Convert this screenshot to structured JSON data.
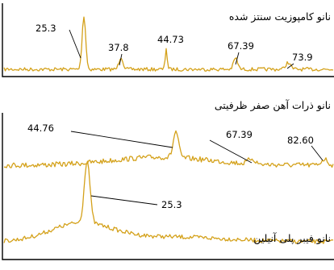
{
  "chart_data": {
    "type": "line",
    "title": "",
    "xlabel": "",
    "ylabel": "",
    "color": "#d4a11a",
    "frame_color": "#000000",
    "panels": [
      {
        "name": "نانو کامپوزیت سنتز شده",
        "peaks": [
          {
            "label": "25.3",
            "height": 0.95
          },
          {
            "label": "37.8",
            "height": 0.22
          },
          {
            "label": "44.73",
            "height": 0.38
          },
          {
            "label": "67.39",
            "height": 0.2
          },
          {
            "label": "73.9",
            "height": 0.12
          }
        ]
      },
      {
        "name": "نانو ذرات آهن صفر ظرفیتی",
        "peaks": [
          {
            "label": "44.76",
            "height": 0.85
          },
          {
            "label": "67.39",
            "height": 0.18
          },
          {
            "label": "82.60",
            "height": 0.2
          }
        ]
      },
      {
        "name": "نانو فیبر پلی آنیلین",
        "peaks": [
          {
            "label": "25.3",
            "height": 0.95
          }
        ]
      }
    ]
  }
}
